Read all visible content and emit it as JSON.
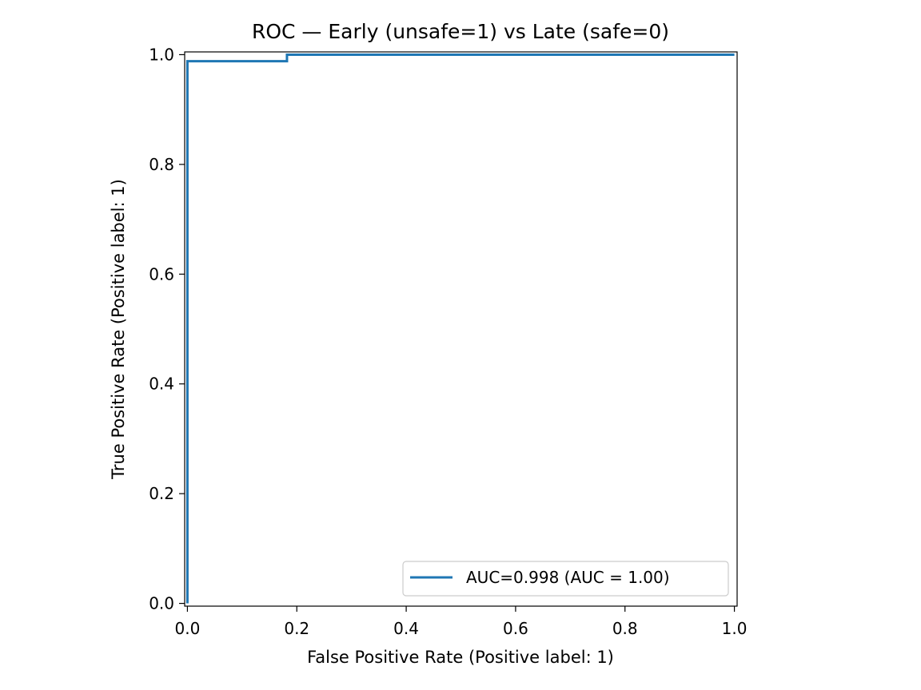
{
  "chart_data": {
    "type": "line",
    "title": "ROC — Early (unsafe=1) vs Late (safe=0)",
    "xlabel": "False Positive Rate (Positive label: 1)",
    "ylabel": "True Positive Rate (Positive label: 1)",
    "xlim": [
      -0.005,
      1.005
    ],
    "ylim": [
      -0.005,
      1.005
    ],
    "xticks": [
      0.0,
      0.2,
      0.4,
      0.6,
      0.8,
      1.0
    ],
    "xtick_labels": [
      "0.0",
      "0.2",
      "0.4",
      "0.6",
      "0.8",
      "1.0"
    ],
    "yticks": [
      0.0,
      0.2,
      0.4,
      0.6,
      0.8,
      1.0
    ],
    "ytick_labels": [
      "0.0",
      "0.2",
      "0.4",
      "0.6",
      "0.8",
      "1.0"
    ],
    "grid": false,
    "legend_position": "lower-right",
    "series": [
      {
        "name": "AUC=0.998 (AUC = 1.00)",
        "color": "#1f77b4",
        "x": [
          0.0,
          0.0,
          0.0,
          0.182,
          0.182,
          1.0
        ],
        "y": [
          0.0,
          0.0,
          0.988,
          0.988,
          1.0,
          1.0
        ]
      }
    ]
  }
}
